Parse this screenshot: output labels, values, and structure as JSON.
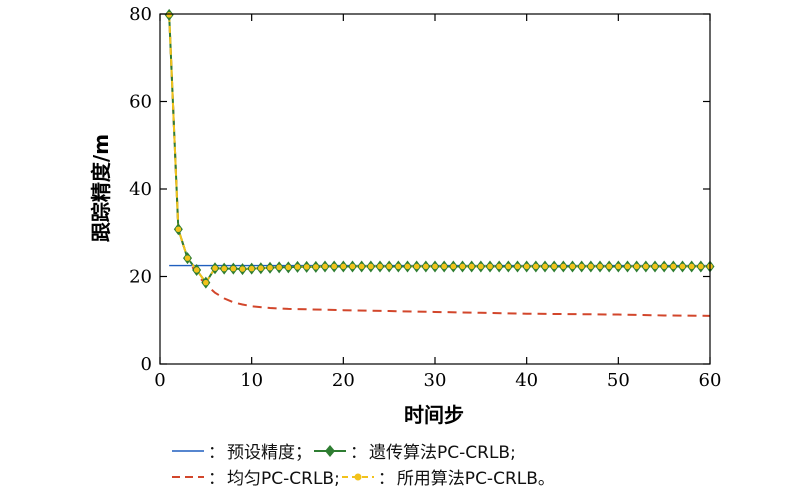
{
  "chart_data": {
    "type": "line",
    "xlabel": "时间步",
    "ylabel": "跟踪精度/m",
    "xlim": [
      0,
      60
    ],
    "ylim": [
      0,
      80
    ],
    "xticks": [
      0,
      10,
      20,
      30,
      40,
      50,
      60
    ],
    "yticks": [
      0,
      20,
      40,
      60,
      80
    ],
    "grid": false,
    "legend_position": "bottom",
    "series": [
      {
        "name": "预设精度",
        "color": "#1f5fbf",
        "style": "solid",
        "x": [
          1,
          60
        ],
        "y": [
          22.5,
          22.5
        ]
      },
      {
        "name": "遗传算法PC-CRLB",
        "color": "#2e7d32",
        "style": "solid-diamond",
        "x": [
          1,
          2,
          3,
          4,
          5,
          6,
          7,
          8,
          9,
          10,
          11,
          12,
          13,
          14,
          15,
          16,
          17,
          18,
          19,
          20,
          21,
          22,
          23,
          24,
          25,
          26,
          27,
          28,
          29,
          30,
          31,
          32,
          33,
          34,
          35,
          36,
          37,
          38,
          39,
          40,
          41,
          42,
          43,
          44,
          45,
          46,
          47,
          48,
          49,
          50,
          51,
          52,
          53,
          54,
          55,
          56,
          57,
          58,
          59,
          60
        ],
        "y": [
          79.8,
          30.8,
          24.2,
          21.5,
          18.6,
          21.9,
          21.8,
          21.8,
          21.7,
          21.8,
          21.9,
          22.0,
          22.1,
          22.1,
          22.2,
          22.2,
          22.2,
          22.3,
          22.3,
          22.3,
          22.3,
          22.3,
          22.3,
          22.3,
          22.3,
          22.3,
          22.3,
          22.3,
          22.3,
          22.3,
          22.3,
          22.3,
          22.3,
          22.3,
          22.3,
          22.3,
          22.3,
          22.3,
          22.3,
          22.3,
          22.3,
          22.3,
          22.3,
          22.3,
          22.3,
          22.3,
          22.3,
          22.3,
          22.3,
          22.3,
          22.3,
          22.3,
          22.3,
          22.3,
          22.3,
          22.3,
          22.3,
          22.3,
          22.3,
          22.3
        ]
      },
      {
        "name": "均匀PC-CRLB",
        "color": "#d2462b",
        "style": "dashed",
        "x": [
          1,
          2,
          3,
          4,
          5,
          6,
          7,
          8,
          9,
          10,
          12,
          14,
          16,
          18,
          20,
          25,
          30,
          35,
          40,
          45,
          50,
          55,
          60
        ],
        "y": [
          79.8,
          30.8,
          24.2,
          20.5,
          18.2,
          16.3,
          15.0,
          14.1,
          13.6,
          13.2,
          12.8,
          12.6,
          12.5,
          12.4,
          12.3,
          12.1,
          11.9,
          11.7,
          11.5,
          11.4,
          11.3,
          11.1,
          11.0
        ]
      },
      {
        "name": "所用算法PC-CRLB",
        "color": "#f2c21b",
        "style": "dashed-dot",
        "x": [
          1,
          2,
          3,
          4,
          5,
          6,
          7,
          8,
          9,
          10,
          11,
          12,
          13,
          14,
          15,
          16,
          17,
          18,
          19,
          20,
          21,
          22,
          23,
          24,
          25,
          26,
          27,
          28,
          29,
          30,
          31,
          32,
          33,
          34,
          35,
          36,
          37,
          38,
          39,
          40,
          41,
          42,
          43,
          44,
          45,
          46,
          47,
          48,
          49,
          50,
          51,
          52,
          53,
          54,
          55,
          56,
          57,
          58,
          59,
          60
        ],
        "y": [
          79.8,
          30.8,
          24.2,
          21.5,
          18.6,
          21.9,
          21.8,
          21.8,
          21.7,
          21.8,
          21.9,
          22.0,
          22.1,
          22.1,
          22.2,
          22.2,
          22.2,
          22.3,
          22.3,
          22.3,
          22.3,
          22.3,
          22.3,
          22.3,
          22.3,
          22.3,
          22.3,
          22.3,
          22.3,
          22.3,
          22.3,
          22.3,
          22.3,
          22.3,
          22.3,
          22.3,
          22.3,
          22.3,
          22.3,
          22.3,
          22.3,
          22.3,
          22.3,
          22.3,
          22.3,
          22.3,
          22.3,
          22.3,
          22.3,
          22.3,
          22.3,
          22.3,
          22.3,
          22.3,
          22.3,
          22.3,
          22.3,
          22.3,
          22.3,
          22.3
        ]
      }
    ]
  },
  "legend": {
    "row1": [
      {
        "sep": "：",
        "label": "预设精度；"
      },
      {
        "sep": "：",
        "label": "遗传算法PC-CRLB;"
      }
    ],
    "row2": [
      {
        "sep": "：",
        "label": "均匀PC-CRLB;"
      },
      {
        "sep": "：",
        "label": "所用算法PC-CRLB。"
      }
    ]
  }
}
